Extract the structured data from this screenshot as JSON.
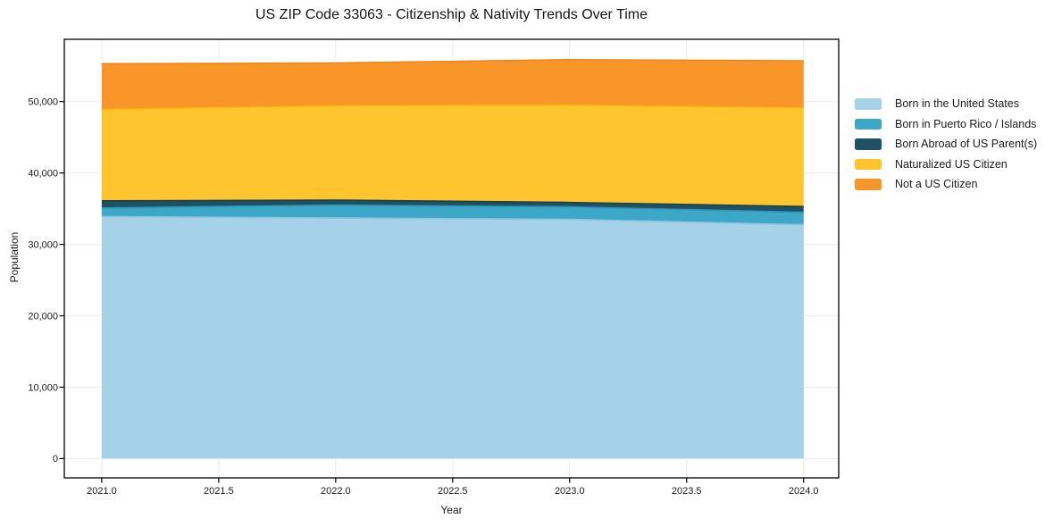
{
  "page": {
    "background": "#ffffff"
  },
  "chart_data": {
    "type": "area",
    "stacked": true,
    "title": "US ZIP Code 33063 - Citizenship & Nativity Trends Over Time",
    "xlabel": "Year",
    "ylabel": "Population",
    "x": [
      2021,
      2022,
      2023,
      2024
    ],
    "series": [
      {
        "name": "Born in the United States",
        "color": "#a5d2e9",
        "edge": "#8cc3e0",
        "values": [
          33900,
          33700,
          33500,
          32750
        ]
      },
      {
        "name": "Born in Puerto Rico / Islands",
        "color": "#3da7c7",
        "edge": "#2e96b5",
        "values": [
          1200,
          1800,
          1750,
          1750
        ]
      },
      {
        "name": "Born Abroad of US Parent(s)",
        "color": "#205064",
        "edge": "#18404f",
        "values": [
          1000,
          700,
          625,
          800
        ]
      },
      {
        "name": "Naturalized US Citizen",
        "color": "#fec52f",
        "edge": "#f8b713",
        "values": [
          12800,
          13200,
          13625,
          13800
        ]
      },
      {
        "name": "Not a US Citizen",
        "color": "#f8962a",
        "edge": "#f08616",
        "values": [
          6400,
          6000,
          6375,
          6600
        ]
      }
    ],
    "stack_totals": [
      55300,
      55400,
      55875,
      55700
    ],
    "xticks": [
      2021.0,
      2021.5,
      2022.0,
      2022.5,
      2023.0,
      2023.5,
      2024.0
    ],
    "xtick_labels": [
      "2021.0",
      "2021.5",
      "2022.0",
      "2022.5",
      "2023.0",
      "2023.5",
      "2024.0"
    ],
    "yticks": [
      0,
      10000,
      20000,
      30000,
      40000,
      50000
    ],
    "ytick_labels": [
      "0",
      "10,000",
      "20,000",
      "30,000",
      "40,000",
      "50,000"
    ],
    "xlim": [
      2020.84,
      2024.15
    ],
    "ylim": [
      -2703,
      58722
    ],
    "grid": true,
    "legend_position": "right",
    "axis_color": "#000000",
    "grid_color": "#ececec",
    "text_color": "#1a1a1a"
  }
}
